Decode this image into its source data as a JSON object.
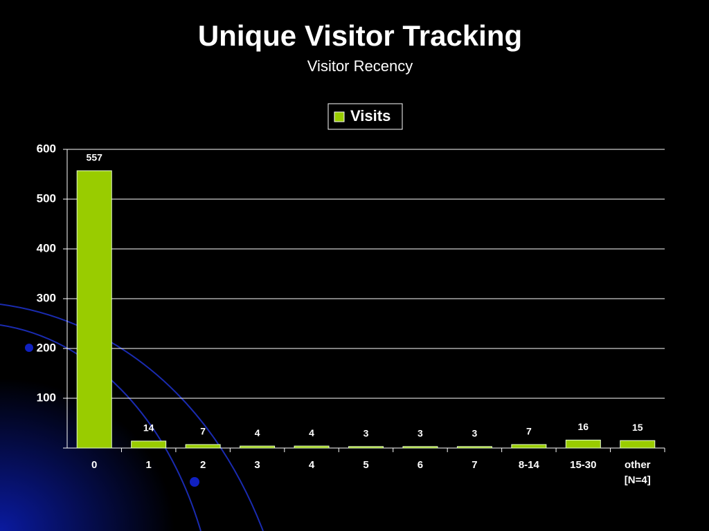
{
  "chart_data": {
    "type": "bar",
    "title": "Unique Visitor Tracking",
    "subtitle": "Visitor Recency",
    "categories": [
      "0",
      "1",
      "2",
      "3",
      "4",
      "5",
      "6",
      "7",
      "8-14",
      "15-30",
      "other\n[N=4]"
    ],
    "series": [
      {
        "name": "Visits",
        "color": "#99cc00",
        "values": [
          557,
          14,
          7,
          4,
          4,
          3,
          3,
          3,
          7,
          16,
          15
        ]
      }
    ],
    "ylim": [
      0,
      600
    ],
    "yticks": [
      100,
      200,
      300,
      400,
      500,
      600
    ],
    "grid": true,
    "legend": "top"
  }
}
